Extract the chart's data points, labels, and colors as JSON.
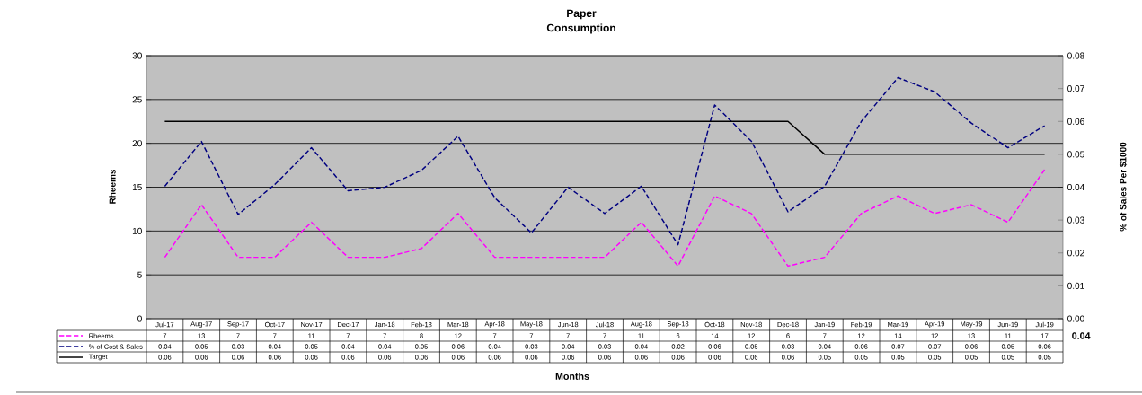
{
  "chart_data": {
    "type": "line",
    "title": "Paper",
    "subtitle": "Consumption",
    "xlabel": "Months",
    "ylabel": "Rheems",
    "y2label": "% of Sales Per $1000",
    "categories": [
      "Jul-17",
      "Aug-17",
      "Sep-17",
      "Oct-17",
      "Nov-17",
      "Dec-17",
      "Jan-18",
      "Feb-18",
      "Mar-18",
      "Apr-18",
      "May-18",
      "Jun-18",
      "Jul-18",
      "Aug-18",
      "Sep-18",
      "Oct-18",
      "Nov-18",
      "Dec-18",
      "Jan-19",
      "Feb-19",
      "Mar-19",
      "Apr-19",
      "May-19",
      "Jun-19",
      "Jul-19"
    ],
    "series": [
      {
        "name": "Rheems",
        "color": "#ff00ff",
        "line_style": "dashed",
        "values": [
          7,
          13,
          7,
          7,
          11,
          7,
          7,
          8,
          12,
          7,
          7,
          7,
          7,
          11,
          6,
          14,
          12,
          6,
          7,
          12,
          14,
          12,
          13,
          11,
          17
        ],
        "value_labels": [
          "7",
          "13",
          "7",
          "7",
          "11",
          "7",
          "7",
          "8",
          "12",
          "7",
          "7",
          "7",
          "7",
          "11",
          "6",
          "14",
          "12",
          "6",
          "7",
          "12",
          "14",
          "12",
          "13",
          "11",
          "17"
        ]
      },
      {
        "name": "% of Cost & Sales",
        "color": "#000080",
        "line_style": "dashed",
        "axis": "y2",
        "values": [
          0.0403,
          0.0539,
          0.0317,
          0.0408,
          0.052,
          0.0389,
          0.04,
          0.0451,
          0.0555,
          0.0368,
          0.0261,
          0.04,
          0.032,
          0.0403,
          0.0225,
          0.065,
          0.054,
          0.0325,
          0.0403,
          0.06,
          0.0733,
          0.069,
          0.0595,
          0.052,
          0.0587
        ],
        "value_labels": [
          "0.04",
          "0.05",
          "0.03",
          "0.04",
          "0.05",
          "0.04",
          "0.04",
          "0.05",
          "0.06",
          "0.04",
          "0.03",
          "0.04",
          "0.03",
          "0.04",
          "0.02",
          "0.06",
          "0.05",
          "0.03",
          "0.04",
          "0.06",
          "0.07",
          "0.07",
          "0.06",
          "0.05",
          "0.06"
        ]
      },
      {
        "name": "Target",
        "color": "#000000",
        "line_style": "solid",
        "axis": "y2",
        "values": [
          0.06,
          0.06,
          0.06,
          0.06,
          0.06,
          0.06,
          0.06,
          0.06,
          0.06,
          0.06,
          0.06,
          0.06,
          0.06,
          0.06,
          0.06,
          0.06,
          0.06,
          0.06,
          0.05,
          0.05,
          0.05,
          0.05,
          0.05,
          0.05,
          0.05
        ],
        "value_labels": [
          "0.06",
          "0.06",
          "0.06",
          "0.06",
          "0.06",
          "0.06",
          "0.06",
          "0.06",
          "0.06",
          "0.06",
          "0.06",
          "0.06",
          "0.06",
          "0.06",
          "0.06",
          "0.06",
          "0.06",
          "0.06",
          "0.05",
          "0.05",
          "0.05",
          "0.05",
          "0.05",
          "0.05",
          "0.05"
        ]
      }
    ],
    "ylim": [
      0,
      30
    ],
    "yticks": [
      0,
      5,
      10,
      15,
      20,
      25,
      30
    ],
    "y2lim": [
      0,
      0.08
    ],
    "y2ticks": [
      {
        "value": 0,
        "label": "0.00"
      },
      {
        "value": 0.01,
        "label": "0.01"
      },
      {
        "value": 0.02,
        "label": "0.02"
      },
      {
        "value": 0.03,
        "label": "0.03"
      },
      {
        "value": 0.04,
        "label": "0.04"
      },
      {
        "value": 0.05,
        "label": "0.05"
      },
      {
        "value": 0.06,
        "label": "0.06"
      },
      {
        "value": 0.07,
        "label": "0.07"
      },
      {
        "value": 0.08,
        "label": "0.08"
      }
    ],
    "grid": "y",
    "legend": "bottom",
    "annotations": [
      "0.04"
    ]
  }
}
